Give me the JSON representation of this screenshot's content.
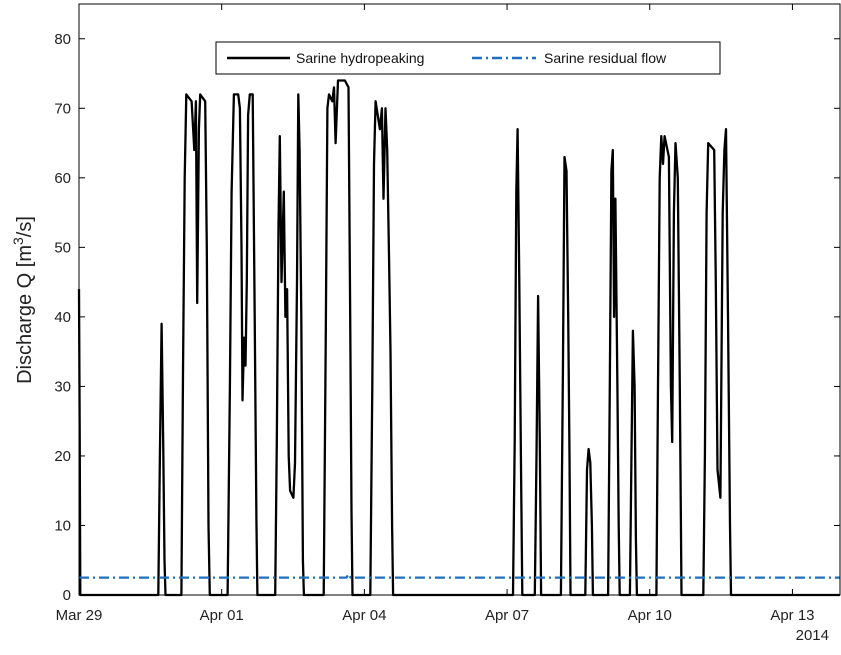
{
  "chart_data": {
    "type": "line",
    "ylabel_main": "Discharge Q [m",
    "ylabel_sup": "3",
    "ylabel_tail": "/s]",
    "ylim": [
      0,
      85
    ],
    "yticks": [
      0,
      10,
      20,
      30,
      40,
      50,
      60,
      70,
      80
    ],
    "xlim": [
      "2014-03-29",
      "2014-04-14"
    ],
    "xticks": [
      {
        "date": "2014-03-29",
        "label": "Mar 29"
      },
      {
        "date": "2014-04-01",
        "label": "Apr 01"
      },
      {
        "date": "2014-04-04",
        "label": "Apr 04"
      },
      {
        "date": "2014-04-07",
        "label": "Apr 07"
      },
      {
        "date": "2014-04-10",
        "label": "Apr 10"
      },
      {
        "date": "2014-04-13",
        "label": "Apr 13"
      }
    ],
    "year_label": "2014",
    "grid": false,
    "legend_position": "top-center",
    "series": [
      {
        "name": "Sarine hydropeaking",
        "color": "#000000",
        "style": "solid",
        "points": [
          [
            "2014-03-29 00:00",
            44
          ],
          [
            "2014-03-29 00:20",
            23
          ],
          [
            "2014-03-29 00:40",
            0
          ],
          [
            "2014-03-30 16:00",
            0
          ],
          [
            "2014-03-30 16:50",
            20
          ],
          [
            "2014-03-30 17:40",
            39
          ],
          [
            "2014-03-30 18:30",
            22
          ],
          [
            "2014-03-30 19:10",
            5
          ],
          [
            "2014-03-30 19:40",
            0
          ],
          [
            "2014-03-31 03:40",
            0
          ],
          [
            "2014-03-31 04:30",
            32
          ],
          [
            "2014-03-31 05:20",
            60
          ],
          [
            "2014-03-31 06:10",
            72
          ],
          [
            "2014-03-31 08:50",
            71
          ],
          [
            "2014-03-31 10:10",
            64
          ],
          [
            "2014-03-31 11:00",
            71
          ],
          [
            "2014-03-31 11:40",
            42
          ],
          [
            "2014-03-31 12:30",
            67
          ],
          [
            "2014-03-31 13:10",
            72
          ],
          [
            "2014-03-31 15:40",
            71
          ],
          [
            "2014-03-31 16:30",
            50
          ],
          [
            "2014-03-31 17:20",
            10
          ],
          [
            "2014-03-31 18:00",
            0
          ],
          [
            "2014-04-01 03:00",
            0
          ],
          [
            "2014-04-01 04:10",
            30
          ],
          [
            "2014-04-01 05:00",
            58
          ],
          [
            "2014-04-01 06:10",
            72
          ],
          [
            "2014-04-01 08:20",
            72
          ],
          [
            "2014-04-01 09:10",
            70
          ],
          [
            "2014-04-01 10:00",
            50
          ],
          [
            "2014-04-01 10:30",
            28
          ],
          [
            "2014-04-01 11:20",
            37
          ],
          [
            "2014-04-01 12:00",
            33
          ],
          [
            "2014-04-01 12:40",
            45
          ],
          [
            "2014-04-01 13:20",
            69
          ],
          [
            "2014-04-01 14:10",
            72
          ],
          [
            "2014-04-01 15:40",
            72
          ],
          [
            "2014-04-01 16:40",
            40
          ],
          [
            "2014-04-01 17:30",
            11
          ],
          [
            "2014-04-01 18:00",
            0
          ],
          [
            "2014-04-02 03:00",
            0
          ],
          [
            "2014-04-02 03:50",
            22
          ],
          [
            "2014-04-02 04:40",
            53
          ],
          [
            "2014-04-02 05:20",
            66
          ],
          [
            "2014-04-02 06:10",
            45
          ],
          [
            "2014-04-02 07:20",
            58
          ],
          [
            "2014-04-02 08:10",
            40
          ],
          [
            "2014-04-02 09:00",
            44
          ],
          [
            "2014-04-02 09:50",
            20
          ],
          [
            "2014-04-02 10:30",
            15
          ],
          [
            "2014-04-02 12:10",
            14
          ],
          [
            "2014-04-02 13:00",
            19
          ],
          [
            "2014-04-02 14:00",
            45
          ],
          [
            "2014-04-02 14:40",
            72
          ],
          [
            "2014-04-02 15:20",
            64
          ],
          [
            "2014-04-02 16:10",
            40
          ],
          [
            "2014-04-02 17:00",
            5
          ],
          [
            "2014-04-02 17:30",
            0
          ],
          [
            "2014-04-03 03:30",
            0
          ],
          [
            "2014-04-03 04:30",
            36
          ],
          [
            "2014-04-03 05:20",
            70
          ],
          [
            "2014-04-03 06:10",
            72
          ],
          [
            "2014-04-03 07:50",
            71
          ],
          [
            "2014-04-03 08:40",
            73
          ],
          [
            "2014-04-03 09:30",
            65
          ],
          [
            "2014-04-03 10:40",
            74
          ],
          [
            "2014-04-03 14:10",
            74
          ],
          [
            "2014-04-03 16:00",
            73
          ],
          [
            "2014-04-03 16:50",
            40
          ],
          [
            "2014-04-03 17:30",
            12
          ],
          [
            "2014-04-03 18:00",
            0
          ],
          [
            "2014-04-04 03:00",
            0
          ],
          [
            "2014-04-04 04:00",
            30
          ],
          [
            "2014-04-04 04:50",
            62
          ],
          [
            "2014-04-04 05:40",
            71
          ],
          [
            "2014-04-04 07:50",
            67
          ],
          [
            "2014-04-04 08:50",
            70
          ],
          [
            "2014-04-04 09:40",
            57
          ],
          [
            "2014-04-04 10:40",
            70
          ],
          [
            "2014-04-04 11:30",
            64
          ],
          [
            "2014-04-04 12:30",
            48
          ],
          [
            "2014-04-04 13:10",
            35
          ],
          [
            "2014-04-04 14:00",
            10
          ],
          [
            "2014-04-04 14:30",
            0
          ],
          [
            "2014-04-07 03:00",
            0
          ],
          [
            "2014-04-07 03:50",
            22
          ],
          [
            "2014-04-07 04:40",
            58
          ],
          [
            "2014-04-07 05:20",
            67
          ],
          [
            "2014-04-07 06:10",
            45
          ],
          [
            "2014-04-07 07:00",
            20
          ],
          [
            "2014-04-07 07:40",
            0
          ],
          [
            "2014-04-07 14:00",
            0
          ],
          [
            "2014-04-07 14:50",
            20
          ],
          [
            "2014-04-07 15:40",
            43
          ],
          [
            "2014-04-07 16:30",
            22
          ],
          [
            "2014-04-07 17:10",
            0
          ],
          [
            "2014-04-08 03:10",
            0
          ],
          [
            "2014-04-08 04:10",
            32
          ],
          [
            "2014-04-08 05:00",
            63
          ],
          [
            "2014-04-08 06:00",
            61
          ],
          [
            "2014-04-08 06:50",
            40
          ],
          [
            "2014-04-08 07:30",
            20
          ],
          [
            "2014-04-08 08:00",
            0
          ],
          [
            "2014-04-08 15:30",
            0
          ],
          [
            "2014-04-08 16:20",
            18
          ],
          [
            "2014-04-08 17:10",
            21
          ],
          [
            "2014-04-08 18:00",
            19
          ],
          [
            "2014-04-08 18:50",
            10
          ],
          [
            "2014-04-08 19:20",
            0
          ],
          [
            "2014-04-09 03:00",
            0
          ],
          [
            "2014-04-09 03:50",
            30
          ],
          [
            "2014-04-09 04:40",
            61
          ],
          [
            "2014-04-09 05:20",
            64
          ],
          [
            "2014-04-09 06:00",
            40
          ],
          [
            "2014-04-09 06:40",
            57
          ],
          [
            "2014-04-09 07:40",
            30
          ],
          [
            "2014-04-09 08:20",
            10
          ],
          [
            "2014-04-09 08:50",
            0
          ],
          [
            "2014-04-09 14:00",
            0
          ],
          [
            "2014-04-09 14:40",
            18
          ],
          [
            "2014-04-09 15:30",
            38
          ],
          [
            "2014-04-09 16:20",
            30
          ],
          [
            "2014-04-09 17:00",
            8
          ],
          [
            "2014-04-09 17:30",
            0
          ],
          [
            "2014-04-10 03:20",
            0
          ],
          [
            "2014-04-10 04:10",
            30
          ],
          [
            "2014-04-10 05:00",
            60
          ],
          [
            "2014-04-10 05:50",
            66
          ],
          [
            "2014-04-10 06:40",
            62
          ],
          [
            "2014-04-10 07:30",
            66
          ],
          [
            "2014-04-10 09:40",
            63
          ],
          [
            "2014-04-10 10:40",
            30
          ],
          [
            "2014-04-10 11:20",
            22
          ],
          [
            "2014-04-10 12:10",
            55
          ],
          [
            "2014-04-10 13:00",
            65
          ],
          [
            "2014-04-10 14:10",
            60
          ],
          [
            "2014-04-10 15:10",
            30
          ],
          [
            "2014-04-10 16:00",
            0
          ],
          [
            "2014-04-11 03:00",
            0
          ],
          [
            "2014-04-11 03:50",
            20
          ],
          [
            "2014-04-11 04:40",
            55
          ],
          [
            "2014-04-11 05:30",
            65
          ],
          [
            "2014-04-11 08:30",
            64
          ],
          [
            "2014-04-11 09:20",
            45
          ],
          [
            "2014-04-11 10:10",
            18
          ],
          [
            "2014-04-11 11:40",
            14
          ],
          [
            "2014-04-11 12:50",
            55
          ],
          [
            "2014-04-11 13:40",
            64
          ],
          [
            "2014-04-11 14:30",
            67
          ],
          [
            "2014-04-11 15:30",
            40
          ],
          [
            "2014-04-11 16:30",
            10
          ],
          [
            "2014-04-11 17:00",
            0
          ],
          [
            "2014-04-14 00:00",
            0
          ]
        ]
      },
      {
        "name": "Sarine residual flow",
        "color": "#1f6fc1",
        "style": "dashdot",
        "points": [
          [
            "2014-03-29 00:00",
            2.5
          ],
          [
            "2014-04-03 15:00",
            2.5
          ],
          [
            "2014-04-03 16:00",
            3.0
          ],
          [
            "2014-04-03 17:00",
            2.5
          ],
          [
            "2014-04-14 00:00",
            2.5
          ]
        ]
      }
    ]
  }
}
